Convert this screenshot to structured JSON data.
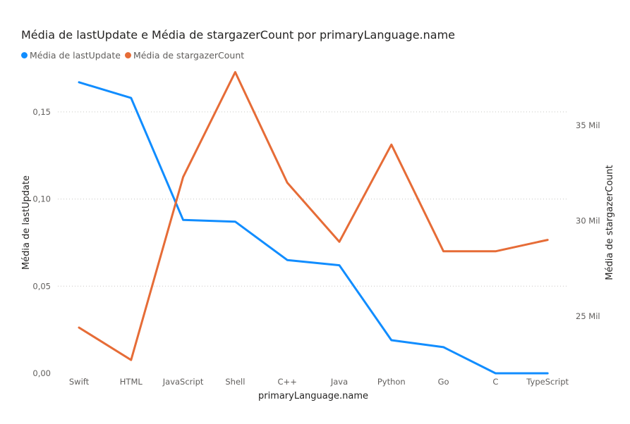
{
  "chart_data": {
    "type": "line",
    "title": "Média de lastUpdate e Média de stargazerCount por primaryLanguage.name",
    "xlabel": "primaryLanguage.name",
    "ylabel_left": "Média de lastUpdate",
    "ylabel_right": "Média de stargazerCount",
    "categories": [
      "Swift",
      "HTML",
      "JavaScript",
      "Shell",
      "C++",
      "Java",
      "Python",
      "Go",
      "C",
      "TypeScript"
    ],
    "y_left_ticks": [
      {
        "value": 0.0,
        "label": "0,00"
      },
      {
        "value": 0.05,
        "label": "0,05"
      },
      {
        "value": 0.1,
        "label": "0,10"
      },
      {
        "value": 0.15,
        "label": "0,15"
      }
    ],
    "y_right_ticks": [
      {
        "value": 25000,
        "label": "25 Mil"
      },
      {
        "value": 30000,
        "label": "30 Mil"
      },
      {
        "value": 35000,
        "label": "35 Mil"
      }
    ],
    "ylim_left": [
      0,
      0.175
    ],
    "ylim_right": [
      22000,
      38000
    ],
    "grid": true,
    "legend_position": "top-left",
    "series": [
      {
        "name": "Média de lastUpdate",
        "axis": "left",
        "color": "#118DFF",
        "values": [
          0.167,
          0.158,
          0.088,
          0.087,
          0.065,
          0.062,
          0.019,
          0.015,
          0.0,
          0.0
        ]
      },
      {
        "name": "Média de stargazerCount",
        "axis": "right",
        "color": "#E66C37",
        "values": [
          24400,
          22700,
          32300,
          37800,
          32000,
          28900,
          34000,
          28400,
          28400,
          29000
        ]
      }
    ]
  }
}
